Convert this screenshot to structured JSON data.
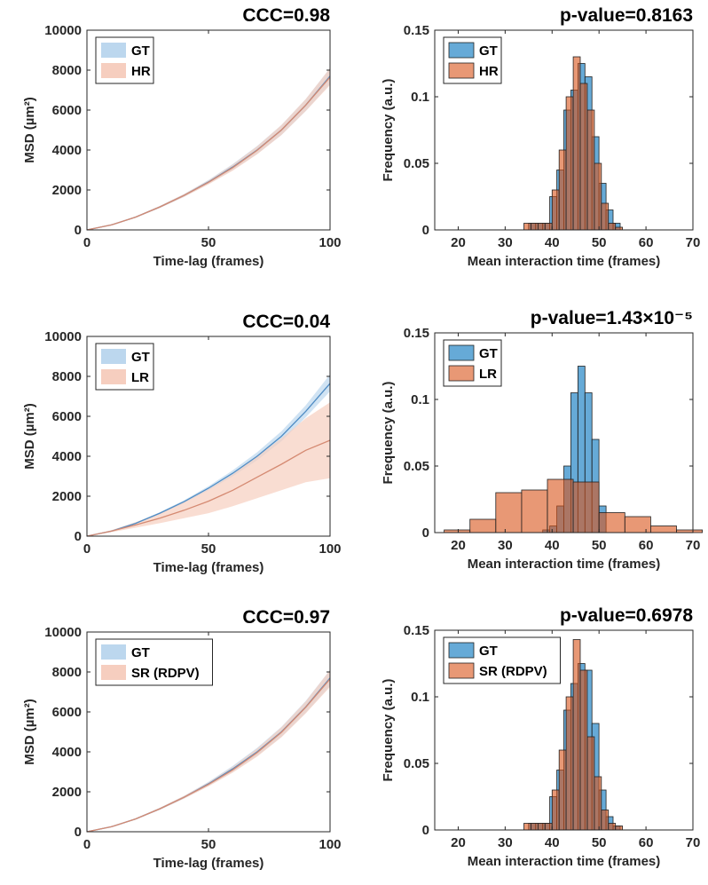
{
  "chart_data": [
    {
      "type": "line",
      "panel": "row1-msd",
      "title": "CCC=0.98",
      "xlabel": "Time-lag (frames)",
      "ylabel": "MSD (µm²)",
      "xlim": [
        0,
        100
      ],
      "ylim": [
        0,
        10000
      ],
      "xticks": [
        0,
        50,
        100
      ],
      "yticks": [
        0,
        2000,
        4000,
        6000,
        8000,
        10000
      ],
      "legend": {
        "position": "top-left"
      },
      "x": [
        0,
        10,
        20,
        30,
        40,
        50,
        60,
        70,
        80,
        90,
        100
      ],
      "series": [
        {
          "name": "GT",
          "color": "#4f8cc4",
          "band_color": "#bcd7ee",
          "mean": [
            0,
            250,
            640,
            1150,
            1730,
            2400,
            3150,
            4000,
            5000,
            6250,
            7700
          ],
          "lower": [
            0,
            235,
            610,
            1100,
            1660,
            2300,
            3000,
            3800,
            4750,
            5950,
            7300
          ],
          "upper": [
            0,
            265,
            670,
            1200,
            1800,
            2500,
            3300,
            4200,
            5250,
            6550,
            8100
          ]
        },
        {
          "name": "HR",
          "color": "#d58a72",
          "band_color": "#f6cebf",
          "mean": [
            0,
            250,
            640,
            1150,
            1730,
            2380,
            3120,
            3980,
            5000,
            6250,
            7650
          ],
          "lower": [
            0,
            235,
            610,
            1100,
            1660,
            2280,
            2970,
            3780,
            4750,
            5950,
            7250
          ],
          "upper": [
            0,
            265,
            670,
            1200,
            1800,
            2480,
            3270,
            4180,
            5250,
            6550,
            8100
          ]
        }
      ]
    },
    {
      "type": "bar",
      "panel": "row1-hist",
      "title": "p-value=0.8163",
      "xlabel": "Mean interaction time (frames)",
      "ylabel": "Frequency (a.u.)",
      "xlim": [
        15,
        70
      ],
      "ylim": [
        0,
        0.15
      ],
      "xticks": [
        20,
        30,
        40,
        50,
        60,
        70
      ],
      "yticks": [
        0,
        0.05,
        0.1,
        0.15
      ],
      "ytick_labels": [
        "0",
        "0.05",
        "0.1",
        "0.15"
      ],
      "legend": {
        "position": "top-left"
      },
      "series": [
        {
          "name": "GT",
          "color": "#0072bd",
          "bin_width": 1.5,
          "bin_starts": [
            35,
            36.5,
            38,
            39.5,
            41,
            42.5,
            44,
            45.5,
            47,
            48.5,
            50,
            51.5,
            53
          ],
          "values": [
            0.005,
            0.005,
            0.005,
            0.025,
            0.045,
            0.09,
            0.105,
            0.125,
            0.115,
            0.07,
            0.035,
            0.015,
            0.005
          ]
        },
        {
          "name": "HR",
          "color": "#d95319",
          "bin_width": 1.5,
          "bin_starts": [
            34,
            35.5,
            37,
            38.5,
            40,
            41.5,
            43,
            44.5,
            46,
            47.5,
            49,
            50.5,
            52,
            53.5
          ],
          "values": [
            0.005,
            0.005,
            0.005,
            0.005,
            0.03,
            0.06,
            0.1,
            0.13,
            0.11,
            0.09,
            0.05,
            0.02,
            0.005,
            0.002
          ]
        }
      ]
    },
    {
      "type": "line",
      "panel": "row2-msd",
      "title": "CCC=0.04",
      "xlabel": "Time-lag (frames)",
      "ylabel": "MSD (µm²)",
      "xlim": [
        0,
        100
      ],
      "ylim": [
        0,
        10000
      ],
      "xticks": [
        0,
        50,
        100
      ],
      "yticks": [
        0,
        2000,
        4000,
        6000,
        8000,
        10000
      ],
      "legend": {
        "position": "top-left"
      },
      "x": [
        0,
        10,
        20,
        30,
        40,
        50,
        60,
        70,
        80,
        90,
        100
      ],
      "series": [
        {
          "name": "GT",
          "color": "#4f8cc4",
          "band_color": "#bcd7ee",
          "mean": [
            0,
            250,
            640,
            1150,
            1730,
            2400,
            3150,
            4000,
            5000,
            6250,
            7650
          ],
          "lower": [
            0,
            235,
            610,
            1100,
            1660,
            2300,
            3000,
            3800,
            4750,
            5950,
            7250
          ],
          "upper": [
            0,
            265,
            670,
            1200,
            1800,
            2500,
            3300,
            4200,
            5250,
            6550,
            8100
          ]
        },
        {
          "name": "LR",
          "color": "#d58a72",
          "band_color": "#f6cebf",
          "mean": [
            0,
            250,
            560,
            900,
            1300,
            1750,
            2300,
            2950,
            3600,
            4300,
            4800
          ],
          "lower": [
            0,
            200,
            420,
            650,
            900,
            1150,
            1500,
            1900,
            2300,
            2700,
            2900
          ],
          "upper": [
            0,
            300,
            700,
            1150,
            1700,
            2350,
            3100,
            4000,
            4900,
            5900,
            6700
          ]
        }
      ]
    },
    {
      "type": "bar",
      "panel": "row2-hist",
      "title": "p-value=1.43×10⁻⁵",
      "xlabel": "Mean interaction time (frames)",
      "ylabel": "Frequency (a.u.)",
      "xlim": [
        15,
        70
      ],
      "ylim": [
        0,
        0.15
      ],
      "xticks": [
        20,
        30,
        40,
        50,
        60,
        70
      ],
      "yticks": [
        0,
        0.05,
        0.1,
        0.15
      ],
      "ytick_labels": [
        "0",
        "0.05",
        "0.1",
        "0.15"
      ],
      "legend": {
        "position": "top-left"
      },
      "series": [
        {
          "name": "GT",
          "color": "#0072bd",
          "bin_width": 1.5,
          "bin_starts": [
            38,
            39.5,
            41,
            42.5,
            44,
            45.5,
            47,
            48.5,
            50
          ],
          "values": [
            0.002,
            0.005,
            0.02,
            0.05,
            0.105,
            0.125,
            0.105,
            0.07,
            0.02
          ]
        },
        {
          "name": "LR",
          "color": "#d95319",
          "bin_width": 5.5,
          "bin_starts": [
            17,
            22.5,
            28,
            33.5,
            39,
            44.5,
            50,
            55.5,
            61,
            66.5
          ],
          "values": [
            0.002,
            0.01,
            0.03,
            0.032,
            0.04,
            0.038,
            0.015,
            0.012,
            0.005,
            0.002
          ]
        }
      ]
    },
    {
      "type": "line",
      "panel": "row3-msd",
      "title": "CCC=0.97",
      "xlabel": "Time-lag (frames)",
      "ylabel": "MSD (µm²)",
      "xlim": [
        0,
        100
      ],
      "ylim": [
        0,
        10000
      ],
      "xticks": [
        0,
        50,
        100
      ],
      "yticks": [
        0,
        2000,
        4000,
        6000,
        8000,
        10000
      ],
      "legend": {
        "position": "top-left"
      },
      "x": [
        0,
        10,
        20,
        30,
        40,
        50,
        60,
        70,
        80,
        90,
        100
      ],
      "series": [
        {
          "name": "GT",
          "color": "#4f8cc4",
          "band_color": "#bcd7ee",
          "mean": [
            0,
            250,
            640,
            1150,
            1730,
            2400,
            3150,
            4000,
            5000,
            6250,
            7700
          ],
          "lower": [
            0,
            235,
            610,
            1100,
            1660,
            2300,
            3000,
            3800,
            4750,
            5950,
            7300
          ],
          "upper": [
            0,
            265,
            670,
            1200,
            1800,
            2500,
            3300,
            4200,
            5250,
            6550,
            8100
          ]
        },
        {
          "name": "SR (RDPV)",
          "color": "#d58a72",
          "band_color": "#f6cebf",
          "mean": [
            0,
            250,
            640,
            1150,
            1730,
            2370,
            3100,
            3960,
            4980,
            6230,
            7650
          ],
          "lower": [
            0,
            235,
            610,
            1100,
            1660,
            2270,
            2960,
            3760,
            4730,
            5930,
            7250
          ],
          "upper": [
            0,
            265,
            670,
            1200,
            1800,
            2470,
            3250,
            4160,
            5230,
            6530,
            8100
          ]
        }
      ]
    },
    {
      "type": "bar",
      "panel": "row3-hist",
      "title": "p-value=0.6978",
      "xlabel": "Mean interaction time (frames)",
      "ylabel": "Frequency (a.u.)",
      "xlim": [
        15,
        70
      ],
      "ylim": [
        0,
        0.15
      ],
      "xticks": [
        20,
        30,
        40,
        50,
        60,
        70
      ],
      "yticks": [
        0,
        0.05,
        0.1,
        0.15
      ],
      "ytick_labels": [
        "0",
        "0.05",
        "0.1",
        "0.15"
      ],
      "legend": {
        "position": "top-left"
      },
      "series": [
        {
          "name": "GT",
          "color": "#0072bd",
          "bin_width": 1.5,
          "bin_starts": [
            35,
            36.5,
            38,
            39.5,
            41,
            42.5,
            44,
            45.5,
            47,
            48.5,
            50,
            51.5,
            53
          ],
          "values": [
            0.005,
            0.005,
            0.005,
            0.025,
            0.045,
            0.09,
            0.11,
            0.125,
            0.12,
            0.08,
            0.03,
            0.01,
            0.003
          ]
        },
        {
          "name": "SR (RDPV)",
          "color": "#d95319",
          "bin_width": 1.5,
          "bin_starts": [
            34,
            35.5,
            37,
            38.5,
            40,
            41.5,
            43,
            44.5,
            46,
            47.5,
            49,
            50.5,
            52,
            53.5
          ],
          "values": [
            0.005,
            0.005,
            0.005,
            0.005,
            0.03,
            0.06,
            0.1,
            0.143,
            0.12,
            0.07,
            0.04,
            0.015,
            0.005,
            0.003
          ]
        }
      ]
    }
  ]
}
